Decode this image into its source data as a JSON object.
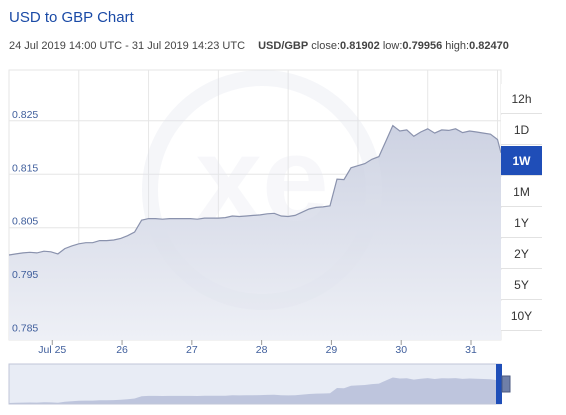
{
  "header": {
    "title": "USD to GBP Chart",
    "date_range": "24 Jul 2019 14:00 UTC - 31 Jul 2019 14:23 UTC",
    "pair": "USD/GBP",
    "close_label": "close:",
    "close_value": "0.81902",
    "low_label": "low:",
    "low_value": "0.79956",
    "high_label": "high:",
    "high_value": "0.82470"
  },
  "range_buttons": [
    {
      "label": "12h",
      "active": false
    },
    {
      "label": "1D",
      "active": false
    },
    {
      "label": "1W",
      "active": true
    },
    {
      "label": "1M",
      "active": false
    },
    {
      "label": "1Y",
      "active": false
    },
    {
      "label": "2Y",
      "active": false
    },
    {
      "label": "5Y",
      "active": false
    },
    {
      "label": "10Y",
      "active": false
    }
  ],
  "colors": {
    "accent": "#1f4eb8",
    "line": "#8a92ad",
    "fill_top": "#cdd2e2",
    "fill_bottom": "#eef0f6",
    "grid": "#e6e6e6",
    "navigator_fill": "#c8cde0"
  },
  "watermark": "xe",
  "chart_data": {
    "type": "area",
    "title": "USD to GBP Chart",
    "xlabel": "",
    "ylabel": "",
    "ylim": [
      0.784,
      0.8345
    ],
    "xlim": [
      0,
      7.05
    ],
    "x_tick_positions": [
      0.62,
      1.62,
      2.62,
      3.62,
      4.62,
      5.62,
      6.62
    ],
    "x_tick_labels": [
      "Jul 25",
      "26",
      "27",
      "28",
      "29",
      "30",
      "31"
    ],
    "y_ticks": [
      0.785,
      0.795,
      0.805,
      0.815,
      0.825
    ],
    "y_tick_labels": [
      "0.785",
      "0.795",
      "0.805",
      "0.815",
      "0.825"
    ],
    "grid": true,
    "x": [
      0,
      0.1,
      0.2,
      0.3,
      0.4,
      0.5,
      0.6,
      0.7,
      0.8,
      0.9,
      1.0,
      1.1,
      1.2,
      1.3,
      1.4,
      1.5,
      1.6,
      1.7,
      1.8,
      1.9,
      2.0,
      2.1,
      2.2,
      2.3,
      2.4,
      2.5,
      2.6,
      2.7,
      2.8,
      2.9,
      3.0,
      3.1,
      3.2,
      3.3,
      3.4,
      3.5,
      3.6,
      3.7,
      3.8,
      3.9,
      4.0,
      4.1,
      4.2,
      4.3,
      4.4,
      4.5,
      4.6,
      4.7,
      4.8,
      4.9,
      5.0,
      5.1,
      5.2,
      5.3,
      5.4,
      5.5,
      5.6,
      5.7,
      5.8,
      5.9,
      6.0,
      6.1,
      6.2,
      6.3,
      6.4,
      6.5,
      6.6,
      6.7,
      6.8,
      6.9,
      7.0,
      7.05
    ],
    "values": [
      0.7999,
      0.8001,
      0.8003,
      0.8004,
      0.8003,
      0.8006,
      0.8005,
      0.8001,
      0.8011,
      0.8016,
      0.802,
      0.8022,
      0.8022,
      0.8026,
      0.8026,
      0.8027,
      0.803,
      0.8035,
      0.8042,
      0.8064,
      0.8067,
      0.8067,
      0.8066,
      0.8067,
      0.8067,
      0.8067,
      0.8067,
      0.8066,
      0.8068,
      0.8068,
      0.8068,
      0.8069,
      0.8072,
      0.8071,
      0.8072,
      0.8073,
      0.8074,
      0.8076,
      0.8077,
      0.8072,
      0.8071,
      0.8073,
      0.8079,
      0.8085,
      0.8088,
      0.8089,
      0.8091,
      0.8141,
      0.814,
      0.8162,
      0.8166,
      0.817,
      0.8178,
      0.8183,
      0.8212,
      0.8241,
      0.8231,
      0.8233,
      0.8221,
      0.8229,
      0.8235,
      0.8227,
      0.8233,
      0.8232,
      0.8235,
      0.8228,
      0.8231,
      0.8229,
      0.8227,
      0.8225,
      0.8215,
      0.819
    ]
  }
}
